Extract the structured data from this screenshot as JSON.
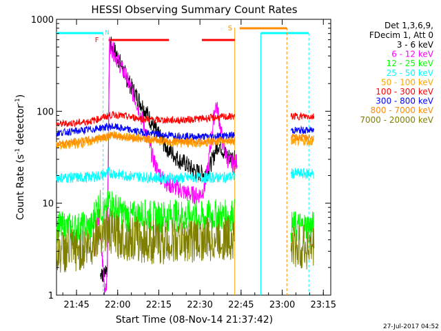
{
  "chart_data": {
    "type": "line",
    "title": "HESSI Observing Summary Count Rates",
    "xlabel": "Start Time (08-Nov-14 21:37:42)",
    "ylabel_main": "Count Rate (s",
    "ylabel_sup1": "-1",
    "ylabel_mid": " detector",
    "ylabel_sup2": "-1",
    "ylabel_end": ")",
    "yscale": "log",
    "ylim": [
      1,
      1000
    ],
    "xlim_minutes": [
      0,
      100
    ],
    "x_ticks": [
      {
        "label": "21:45",
        "m": 7.3
      },
      {
        "label": "22:00",
        "m": 22.3
      },
      {
        "label": "22:15",
        "m": 37.3
      },
      {
        "label": "22:30",
        "m": 52.3
      },
      {
        "label": "22:45",
        "m": 67.3
      },
      {
        "label": "23:00",
        "m": 82.3
      },
      {
        "label": "23:15",
        "m": 97.3
      }
    ],
    "y_ticks": [
      {
        "label": "1",
        "v": 1
      },
      {
        "label": "10",
        "v": 10
      },
      {
        "label": "100",
        "v": 100
      },
      {
        "label": "1000",
        "v": 1000
      }
    ],
    "legend_header1": "Det 1,3,6,9,",
    "legend_header2": "FDecim 1, Att 0",
    "series": [
      {
        "name": "3 - 6 keV",
        "color": "#000000",
        "points": [
          [
            16,
            1.6
          ],
          [
            16.5,
            2.0
          ],
          [
            17,
            1.4
          ],
          [
            17.5,
            1.9
          ],
          [
            18.5,
            2.0
          ],
          [
            19.3,
            550
          ],
          [
            21,
            470
          ],
          [
            23,
            350
          ],
          [
            25,
            250
          ],
          [
            27,
            190
          ],
          [
            29,
            150
          ],
          [
            31,
            120
          ],
          [
            33,
            95
          ],
          [
            35,
            72
          ],
          [
            37,
            56
          ],
          [
            39,
            45
          ],
          [
            41,
            38
          ],
          [
            43,
            33
          ],
          [
            45,
            29
          ],
          [
            47,
            27
          ],
          [
            49,
            24
          ],
          [
            51,
            22
          ],
          [
            53,
            21
          ],
          [
            55,
            22
          ],
          [
            57,
            30
          ],
          [
            58,
            38
          ],
          [
            59,
            44
          ],
          [
            60,
            42
          ],
          [
            61,
            36
          ],
          [
            62,
            33
          ],
          [
            63,
            32
          ],
          [
            64,
            31
          ],
          [
            65,
            34
          ]
        ]
      },
      {
        "name": "6 - 12 keV",
        "color": "#ff00ff",
        "points": [
          [
            14,
            3
          ],
          [
            15,
            8
          ],
          [
            16,
            4
          ],
          [
            17,
            2
          ],
          [
            17.5,
            1.2
          ],
          [
            18.5,
            1.5
          ],
          [
            19.3,
            560
          ],
          [
            21,
            430
          ],
          [
            23,
            330
          ],
          [
            25,
            250
          ],
          [
            27,
            180
          ],
          [
            29,
            130
          ],
          [
            31,
            85
          ],
          [
            33,
            55
          ],
          [
            35,
            32
          ],
          [
            37,
            22
          ],
          [
            39,
            18
          ],
          [
            41,
            16
          ],
          [
            43,
            15
          ],
          [
            45,
            14
          ],
          [
            47,
            13
          ],
          [
            49,
            12.5
          ],
          [
            51,
            12
          ],
          [
            53,
            13
          ],
          [
            54,
            15
          ],
          [
            55,
            22
          ],
          [
            56,
            38
          ],
          [
            57,
            70
          ],
          [
            58,
            120
          ],
          [
            59,
            95
          ],
          [
            60,
            60
          ],
          [
            61,
            40
          ],
          [
            62,
            32
          ],
          [
            63,
            28
          ],
          [
            64,
            27
          ],
          [
            65,
            26
          ],
          [
            66,
            30
          ]
        ]
      },
      {
        "name": "12 - 25 keV",
        "color": "#00ff00",
        "points": [
          [
            0,
            5.5
          ],
          [
            5,
            5.3
          ],
          [
            10,
            5.4
          ],
          [
            13,
            5.5
          ],
          [
            14,
            8
          ],
          [
            15,
            9
          ],
          [
            16,
            9.5
          ],
          [
            17,
            8
          ],
          [
            18,
            7.5
          ],
          [
            19.3,
            11
          ],
          [
            21,
            9
          ],
          [
            23,
            8
          ],
          [
            25,
            7.5
          ],
          [
            27,
            7
          ],
          [
            29,
            7.2
          ],
          [
            31,
            7.5
          ],
          [
            33,
            7.3
          ],
          [
            35,
            7.2
          ],
          [
            37,
            7.0
          ],
          [
            39,
            7.2
          ],
          [
            41,
            7.4
          ],
          [
            43,
            7.3
          ],
          [
            45,
            7.5
          ],
          [
            47,
            7.2
          ],
          [
            49,
            7.3
          ],
          [
            51,
            7.1
          ],
          [
            53,
            7.0
          ],
          [
            55,
            7.2
          ],
          [
            57,
            7.5
          ],
          [
            59,
            7.3
          ],
          [
            61,
            7.2
          ],
          [
            63,
            7.4
          ],
          [
            65,
            7.5
          ]
        ]
      },
      {
        "name": "25 - 50 keV",
        "color": "#00ffff",
        "points": [
          [
            0,
            19
          ],
          [
            5,
            19
          ],
          [
            10,
            19
          ],
          [
            14,
            19.5
          ],
          [
            16,
            20
          ],
          [
            19.3,
            21.5
          ],
          [
            21,
            21
          ],
          [
            25,
            20
          ],
          [
            30,
            19.5
          ],
          [
            35,
            19
          ],
          [
            40,
            18.8
          ],
          [
            45,
            18.7
          ],
          [
            50,
            19
          ],
          [
            55,
            19
          ],
          [
            60,
            19
          ],
          [
            65,
            19.5
          ]
        ]
      },
      {
        "name": "50 - 100 keV",
        "color": "#ffa500",
        "points": [
          [
            0,
            42
          ],
          [
            5,
            43
          ],
          [
            10,
            45
          ],
          [
            14,
            48
          ],
          [
            16,
            50
          ],
          [
            19.3,
            54
          ],
          [
            21,
            55
          ],
          [
            25,
            53
          ],
          [
            30,
            52
          ],
          [
            35,
            50
          ],
          [
            40,
            47
          ],
          [
            45,
            45
          ],
          [
            50,
            45
          ],
          [
            55,
            46
          ],
          [
            60,
            47
          ],
          [
            65,
            47
          ]
        ]
      },
      {
        "name": "100 - 300 keV",
        "color": "#ff0000",
        "points": [
          [
            0,
            72
          ],
          [
            5,
            74
          ],
          [
            10,
            76
          ],
          [
            14,
            80
          ],
          [
            16,
            84
          ],
          [
            19.3,
            90
          ],
          [
            21,
            92
          ],
          [
            25,
            88
          ],
          [
            30,
            84
          ],
          [
            35,
            81
          ],
          [
            40,
            80
          ],
          [
            45,
            80
          ],
          [
            50,
            82
          ],
          [
            55,
            84
          ],
          [
            60,
            86
          ],
          [
            65,
            88
          ]
        ]
      },
      {
        "name": "300 - 800 keV",
        "color": "#0000ff",
        "points": [
          [
            0,
            58
          ],
          [
            5,
            60
          ],
          [
            10,
            62
          ],
          [
            14,
            64
          ],
          [
            16,
            66
          ],
          [
            19.3,
            68
          ],
          [
            21,
            68
          ],
          [
            25,
            64
          ],
          [
            30,
            60
          ],
          [
            35,
            57
          ],
          [
            40,
            55
          ],
          [
            45,
            54
          ],
          [
            50,
            53
          ],
          [
            55,
            53
          ],
          [
            60,
            54
          ],
          [
            65,
            55
          ]
        ]
      },
      {
        "name": "800 - 7000 keV",
        "color": "#ff8c00",
        "points": [
          [
            0,
            45
          ],
          [
            5,
            46
          ],
          [
            10,
            48
          ],
          [
            14,
            50
          ],
          [
            16,
            52
          ],
          [
            19.3,
            55
          ],
          [
            21,
            54
          ],
          [
            25,
            52
          ],
          [
            30,
            50
          ],
          [
            35,
            49
          ],
          [
            40,
            48
          ],
          [
            45,
            47
          ],
          [
            50,
            47
          ],
          [
            55,
            47
          ],
          [
            60,
            48
          ],
          [
            65,
            48
          ]
        ]
      },
      {
        "name": "7000 - 20000 keV",
        "color": "#808000",
        "points": [
          [
            0,
            3
          ],
          [
            5,
            3
          ],
          [
            10,
            3.2
          ],
          [
            13,
            3.5
          ],
          [
            14,
            4.5
          ],
          [
            16,
            5
          ],
          [
            19.3,
            5
          ],
          [
            21,
            4.5
          ],
          [
            25,
            4.2
          ],
          [
            30,
            4
          ],
          [
            35,
            3.8
          ],
          [
            40,
            3.8
          ],
          [
            45,
            3.9
          ],
          [
            50,
            4
          ],
          [
            55,
            4
          ],
          [
            60,
            4.1
          ],
          [
            65,
            4.2
          ]
        ]
      }
    ],
    "right_segment": {
      "comment_free": true,
      "values": {
        "100 - 300 keV": 88,
        "300 - 800 keV": 62,
        "800 - 7000 keV": 52,
        "50 - 100 keV": 47,
        "25 - 50 keV": 21,
        "12 - 25 keV": 5.5,
        "7000 - 20000 keV": 3.3
      },
      "x_start_minutes": 85.5,
      "x_end_minutes": 94
    },
    "flags": {
      "F_label": "F",
      "S_label": "S",
      "F_segments": [
        [
          19,
          41
        ],
        [
          53,
          65
        ]
      ],
      "S_segments": [
        [
          66.8,
          84
        ]
      ],
      "N_label": "N"
    },
    "night_bars": [
      [
        0,
        17
      ],
      [
        74.5,
        92
      ]
    ]
  },
  "footer": {
    "timestamp": "27-Jul-2017 04:52"
  },
  "colors": {
    "background": "#ffffff",
    "axes": "#000000"
  }
}
